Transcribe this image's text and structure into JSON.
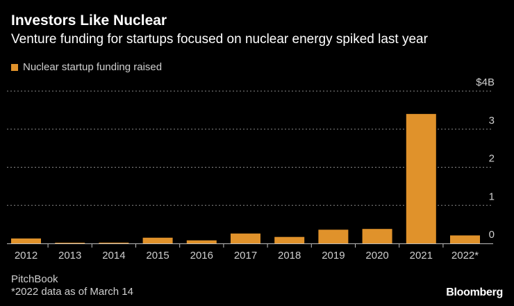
{
  "header": {
    "title": "Investors Like Nuclear",
    "subtitle": "Venture funding for startups focused on nuclear energy spiked last year"
  },
  "footer": {
    "source": "PitchBook",
    "note": "*2022 data as of March 14",
    "brand": "Bloomberg"
  },
  "colors": {
    "bar": "#e0922b",
    "grid": "#8a8a8a",
    "axis_text": "#cfcfcf",
    "background": "#000000"
  },
  "chart_data": {
    "type": "bar",
    "title": "Investors Like Nuclear",
    "subtitle": "Venture funding for startups focused on nuclear energy spiked last year",
    "legend": [
      "Nuclear startup funding raised"
    ],
    "series": [
      {
        "name": "Nuclear startup funding raised",
        "values": [
          0.13,
          0.01,
          0.02,
          0.15,
          0.08,
          0.26,
          0.17,
          0.36,
          0.38,
          3.4,
          0.21
        ]
      }
    ],
    "categories": [
      "2012",
      "2013",
      "2014",
      "2015",
      "2016",
      "2017",
      "2018",
      "2019",
      "2020",
      "2021",
      "2022*"
    ],
    "ylim": [
      0,
      4
    ],
    "yticks": [
      0,
      1,
      2,
      3,
      4
    ],
    "ytick_labels": [
      "0",
      "1",
      "2",
      "3",
      "$4B"
    ],
    "xlabel": "",
    "ylabel": "",
    "grid": true,
    "legend_position": "top-left"
  }
}
